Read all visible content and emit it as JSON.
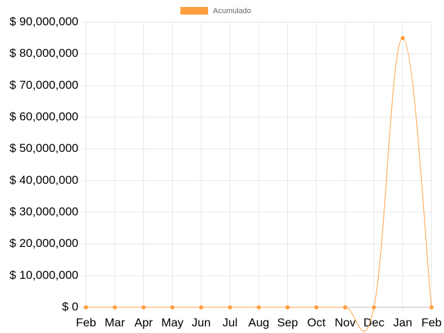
{
  "chart_data": {
    "type": "line",
    "categories": [
      "Feb",
      "Mar",
      "Apr",
      "May",
      "Jun",
      "Jul",
      "Aug",
      "Sep",
      "Oct",
      "Nov",
      "Dec",
      "Jan",
      "Feb"
    ],
    "series": [
      {
        "name": "Acumulado",
        "color": "#ff9f40",
        "values": [
          0,
          0,
          0,
          0,
          0,
          0,
          0,
          0,
          0,
          0,
          0,
          85000000,
          0
        ]
      }
    ],
    "ylim": [
      0,
      90000000
    ],
    "yticks": [
      {
        "value": 0,
        "label": "$ 0"
      },
      {
        "value": 10000000,
        "label": "$ 10,000,000"
      },
      {
        "value": 20000000,
        "label": "$ 20,000,000"
      },
      {
        "value": 30000000,
        "label": "$ 30,000,000"
      },
      {
        "value": 40000000,
        "label": "$ 40,000,000"
      },
      {
        "value": 50000000,
        "label": "$ 50,000,000"
      },
      {
        "value": 60000000,
        "label": "$ 60,000,000"
      },
      {
        "value": 70000000,
        "label": "$ 70,000,000"
      },
      {
        "value": 80000000,
        "label": "$ 80,000,000"
      },
      {
        "value": 90000000,
        "label": "$ 90,000,000"
      }
    ],
    "grid": true,
    "legend": "top"
  }
}
